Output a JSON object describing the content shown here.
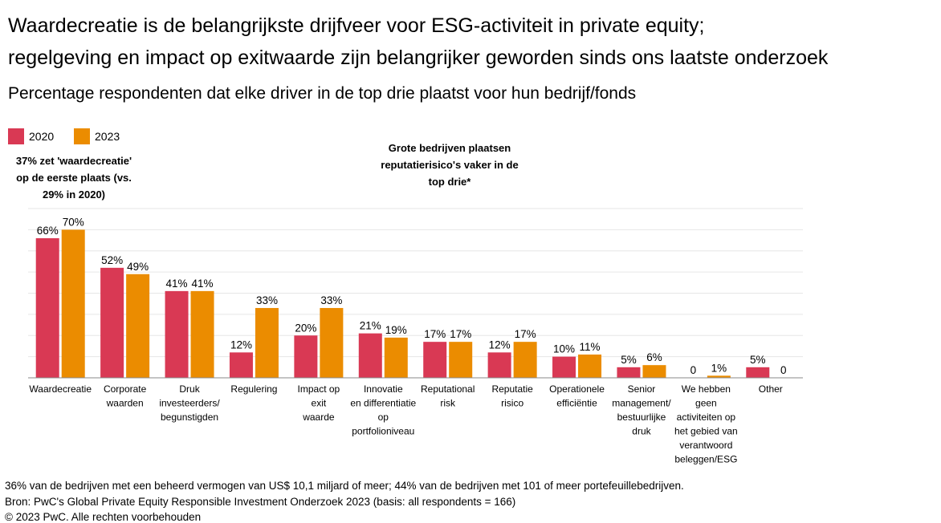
{
  "title_line1": "Waardecreatie is de belangrijkste drijfveer voor ESG-activiteit in private equity;",
  "title_line2": "regelgeving en impact op exitwaarde zijn belangrijker geworden sinds ons laatste onderzoek",
  "subtitle": "Percentage respondenten dat elke driver in de top drie plaatst voor hun bedrijf/fonds",
  "annotations": {
    "left": "37% zet 'waardecreatie' op de eerste plaats (vs. 29% in 2020)",
    "center": "Grote bedrijven plaatsen reputatierisico's vaker in de top drie*"
  },
  "footer": {
    "note": "36% van de bedrijven met een beheerd vermogen van US$ 10,1 miljard of meer; 44% van de bedrijven met 101 of meer portefeuillebedrijven.",
    "source": "Bron: PwC's Global Private Equity Responsible Investment Onderzoek 2023 (basis: all respondents = 166)",
    "copyright": "© 2023 PwC. Alle rechten voorbehouden"
  },
  "chart_data": {
    "type": "bar",
    "title": "Percentage respondenten dat elke driver in de top drie plaatst voor hun bedrijf/fonds",
    "xlabel": "",
    "ylabel": "",
    "ylim": [
      0,
      80
    ],
    "grid": true,
    "legend": "top-left",
    "categories": [
      [
        "Waardecreatie"
      ],
      [
        "Corporate",
        "waarden"
      ],
      [
        "Druk",
        "investeerders/",
        "begunstigden"
      ],
      [
        "Regulering"
      ],
      [
        "Impact op",
        "exit",
        "waarde"
      ],
      [
        "Innovatie",
        "en differentiatie",
        "op",
        "portfolioniveau"
      ],
      [
        "Reputational",
        "risk"
      ],
      [
        "Reputatie",
        "risico"
      ],
      [
        "Operationele",
        "efficiëntie"
      ],
      [
        "Senior",
        "management/",
        "bestuurlijke",
        "druk"
      ],
      [
        "We hebben",
        "geen",
        "activiteiten op",
        "het gebied van",
        "verantwoord",
        "beleggen/ESG"
      ],
      [
        "Other"
      ]
    ],
    "series": [
      {
        "name": "2020",
        "color": "#d93954",
        "values": [
          66,
          52,
          41,
          12,
          20,
          21,
          17,
          12,
          10,
          5,
          0,
          5
        ],
        "labels": [
          "66%",
          "52%",
          "41%",
          "12%",
          "20%",
          "21%",
          "17%",
          "12%",
          "10%",
          "5%",
          "0",
          "5%"
        ]
      },
      {
        "name": "2023",
        "color": "#eb8c00",
        "values": [
          70,
          49,
          41,
          33,
          33,
          19,
          17,
          17,
          11,
          6,
          1,
          0
        ],
        "labels": [
          "70%",
          "49%",
          "41%",
          "33%",
          "33%",
          "19%",
          "17%",
          "17%",
          "11%",
          "6%",
          "1%",
          "0"
        ]
      }
    ]
  }
}
